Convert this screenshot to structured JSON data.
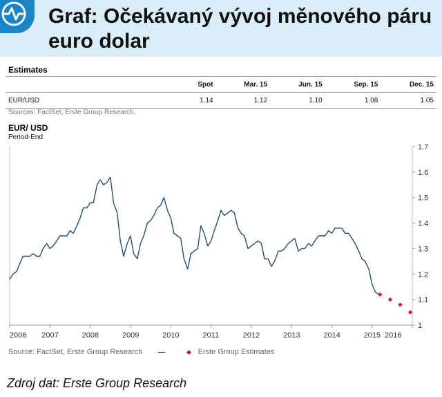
{
  "header": {
    "title_line1": "Graf:  Očekávaný vývoj měnového páru",
    "title_line2": "euro dolar",
    "logo": "chart-pulse-icon"
  },
  "estimates": {
    "title": "Estimates",
    "columns": [
      "",
      "Spot",
      "Mar. 15",
      "Jun. 15",
      "Sep. 15",
      "Dec. 15"
    ],
    "rows": [
      {
        "label": "EUR/USD",
        "values": [
          "1.14",
          "1.12",
          "1.10",
          "1.08",
          "1.05"
        ]
      }
    ],
    "source": "Sources: FactSet, Erste Group Research."
  },
  "chart_data": {
    "type": "line",
    "title": "EUR/ USD",
    "subtitle": "Period-End",
    "x_ticks": [
      "2006",
      "2007",
      "2008",
      "2009",
      "2010",
      "2011",
      "2012",
      "2013",
      "2014",
      "2015",
      "2016"
    ],
    "y_ticks": [
      "1",
      "1.1",
      "1.2",
      "1.3",
      "1.4",
      "1.5",
      "1.6",
      "1.7"
    ],
    "ylim": [
      1.0,
      1.7
    ],
    "xlim": [
      2006.0,
      2016.0
    ],
    "y_axis_position": "right",
    "grid": false,
    "series": [
      {
        "name": "",
        "color": "#1f4e79",
        "points": [
          [
            2006.0,
            1.18
          ],
          [
            2006.08,
            1.2
          ],
          [
            2006.17,
            1.21
          ],
          [
            2006.25,
            1.24
          ],
          [
            2006.33,
            1.27
          ],
          [
            2006.42,
            1.27
          ],
          [
            2006.5,
            1.27
          ],
          [
            2006.58,
            1.28
          ],
          [
            2006.67,
            1.27
          ],
          [
            2006.75,
            1.27
          ],
          [
            2006.83,
            1.3
          ],
          [
            2006.92,
            1.32
          ],
          [
            2007.0,
            1.3
          ],
          [
            2007.08,
            1.31
          ],
          [
            2007.17,
            1.33
          ],
          [
            2007.25,
            1.35
          ],
          [
            2007.33,
            1.35
          ],
          [
            2007.42,
            1.35
          ],
          [
            2007.5,
            1.37
          ],
          [
            2007.58,
            1.36
          ],
          [
            2007.67,
            1.39
          ],
          [
            2007.75,
            1.42
          ],
          [
            2007.83,
            1.46
          ],
          [
            2007.92,
            1.46
          ],
          [
            2008.0,
            1.48
          ],
          [
            2008.08,
            1.48
          ],
          [
            2008.17,
            1.55
          ],
          [
            2008.25,
            1.57
          ],
          [
            2008.33,
            1.55
          ],
          [
            2008.42,
            1.56
          ],
          [
            2008.5,
            1.58
          ],
          [
            2008.58,
            1.48
          ],
          [
            2008.67,
            1.44
          ],
          [
            2008.75,
            1.33
          ],
          [
            2008.83,
            1.27
          ],
          [
            2008.92,
            1.32
          ],
          [
            2009.0,
            1.35
          ],
          [
            2009.08,
            1.28
          ],
          [
            2009.17,
            1.26
          ],
          [
            2009.25,
            1.32
          ],
          [
            2009.33,
            1.35
          ],
          [
            2009.42,
            1.4
          ],
          [
            2009.5,
            1.41
          ],
          [
            2009.58,
            1.43
          ],
          [
            2009.67,
            1.46
          ],
          [
            2009.75,
            1.47
          ],
          [
            2009.83,
            1.5
          ],
          [
            2009.92,
            1.45
          ],
          [
            2010.0,
            1.42
          ],
          [
            2010.08,
            1.36
          ],
          [
            2010.17,
            1.35
          ],
          [
            2010.25,
            1.34
          ],
          [
            2010.33,
            1.26
          ],
          [
            2010.42,
            1.22
          ],
          [
            2010.5,
            1.28
          ],
          [
            2010.58,
            1.29
          ],
          [
            2010.67,
            1.3
          ],
          [
            2010.75,
            1.39
          ],
          [
            2010.83,
            1.36
          ],
          [
            2010.92,
            1.31
          ],
          [
            2011.0,
            1.33
          ],
          [
            2011.08,
            1.37
          ],
          [
            2011.17,
            1.41
          ],
          [
            2011.25,
            1.45
          ],
          [
            2011.33,
            1.43
          ],
          [
            2011.42,
            1.44
          ],
          [
            2011.5,
            1.45
          ],
          [
            2011.58,
            1.44
          ],
          [
            2011.67,
            1.38
          ],
          [
            2011.75,
            1.36
          ],
          [
            2011.83,
            1.35
          ],
          [
            2011.92,
            1.3
          ],
          [
            2012.0,
            1.31
          ],
          [
            2012.08,
            1.32
          ],
          [
            2012.17,
            1.33
          ],
          [
            2012.25,
            1.32
          ],
          [
            2012.33,
            1.26
          ],
          [
            2012.42,
            1.26
          ],
          [
            2012.5,
            1.23
          ],
          [
            2012.58,
            1.25
          ],
          [
            2012.67,
            1.29
          ],
          [
            2012.75,
            1.29
          ],
          [
            2012.83,
            1.3
          ],
          [
            2012.92,
            1.32
          ],
          [
            2013.0,
            1.33
          ],
          [
            2013.08,
            1.34
          ],
          [
            2013.17,
            1.29
          ],
          [
            2013.25,
            1.3
          ],
          [
            2013.33,
            1.3
          ],
          [
            2013.42,
            1.32
          ],
          [
            2013.5,
            1.31
          ],
          [
            2013.58,
            1.33
          ],
          [
            2013.67,
            1.35
          ],
          [
            2013.75,
            1.35
          ],
          [
            2013.83,
            1.35
          ],
          [
            2013.92,
            1.37
          ],
          [
            2014.0,
            1.36
          ],
          [
            2014.08,
            1.38
          ],
          [
            2014.17,
            1.38
          ],
          [
            2014.25,
            1.38
          ],
          [
            2014.33,
            1.36
          ],
          [
            2014.42,
            1.36
          ],
          [
            2014.5,
            1.34
          ],
          [
            2014.58,
            1.32
          ],
          [
            2014.67,
            1.29
          ],
          [
            2014.75,
            1.26
          ],
          [
            2014.83,
            1.25
          ],
          [
            2014.92,
            1.22
          ],
          [
            2015.0,
            1.16
          ],
          [
            2015.08,
            1.13
          ],
          [
            2015.17,
            1.12
          ]
        ]
      }
    ],
    "estimates_series": {
      "name": "Erste Group Estimates",
      "color": "#e0151e",
      "points": [
        [
          2015.2,
          1.12
        ],
        [
          2015.45,
          1.1
        ],
        [
          2015.7,
          1.08
        ],
        [
          2015.95,
          1.05
        ]
      ]
    },
    "source": "Source: FactSet, Erste Group Research"
  },
  "footer": {
    "text": "Zdroj dat: Erste Group Research"
  }
}
